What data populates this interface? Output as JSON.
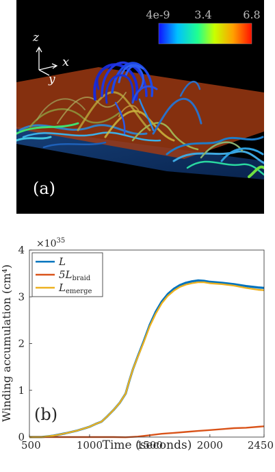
{
  "panel_a": {
    "label": "(a)",
    "colorbar": {
      "ticks": [
        "4e-9",
        "3.4",
        "6.8"
      ]
    },
    "axes_labels": {
      "z": "z",
      "x": "x",
      "y": "y"
    }
  },
  "panel_b": {
    "label": "(b)",
    "exponent_label": "×10",
    "exponent_power": "35"
  },
  "chart_data": {
    "type": "line",
    "xlabel": "Time (seconds)",
    "ylabel": "Winding accumulation (cm⁴)",
    "xlim": [
      500,
      2450
    ],
    "ylim": [
      0,
      4
    ],
    "xticks": [
      "500",
      "1000",
      "1500",
      "2000",
      "2450"
    ],
    "yticks": [
      "0",
      "1",
      "2",
      "3",
      "4"
    ],
    "legend_placement": "top-left",
    "series": [
      {
        "name": "L",
        "color": "#0072BD",
        "x": [
          500,
          600,
          700,
          800,
          900,
          1000,
          1050,
          1100,
          1150,
          1200,
          1250,
          1300,
          1330,
          1360,
          1400,
          1450,
          1500,
          1550,
          1600,
          1650,
          1700,
          1750,
          1800,
          1850,
          1900,
          1950,
          2000,
          2100,
          2200,
          2300,
          2400,
          2450
        ],
        "values": [
          0.0,
          0.0,
          0.03,
          0.08,
          0.14,
          0.22,
          0.28,
          0.33,
          0.45,
          0.58,
          0.73,
          0.93,
          1.2,
          1.45,
          1.72,
          2.05,
          2.4,
          2.68,
          2.9,
          3.06,
          3.17,
          3.25,
          3.3,
          3.33,
          3.35,
          3.34,
          3.32,
          3.3,
          3.27,
          3.23,
          3.2,
          3.19
        ]
      },
      {
        "name": "5L",
        "subscript": "braid",
        "color": "#D95319",
        "x": [
          500,
          800,
          1000,
          1200,
          1300,
          1400,
          1500,
          1600,
          1700,
          1800,
          1900,
          2000,
          2100,
          2200,
          2300,
          2400,
          2450
        ],
        "values": [
          0.0,
          0.0,
          0.0,
          0.0,
          -0.005,
          0.01,
          0.04,
          0.07,
          0.09,
          0.11,
          0.13,
          0.15,
          0.17,
          0.19,
          0.2,
          0.22,
          0.23
        ]
      },
      {
        "name": "L",
        "subscript": "emerge",
        "color": "#EDB120",
        "x": [
          500,
          600,
          700,
          800,
          900,
          1000,
          1050,
          1100,
          1150,
          1200,
          1250,
          1300,
          1330,
          1360,
          1400,
          1450,
          1500,
          1550,
          1600,
          1650,
          1700,
          1750,
          1800,
          1850,
          1900,
          1950,
          2000,
          2100,
          2200,
          2300,
          2400,
          2450
        ],
        "values": [
          0.0,
          0.0,
          0.03,
          0.08,
          0.14,
          0.22,
          0.28,
          0.33,
          0.45,
          0.58,
          0.73,
          0.93,
          1.2,
          1.45,
          1.71,
          2.03,
          2.37,
          2.64,
          2.86,
          3.02,
          3.13,
          3.21,
          3.26,
          3.29,
          3.31,
          3.31,
          3.29,
          3.27,
          3.24,
          3.19,
          3.15,
          3.14
        ]
      }
    ]
  }
}
